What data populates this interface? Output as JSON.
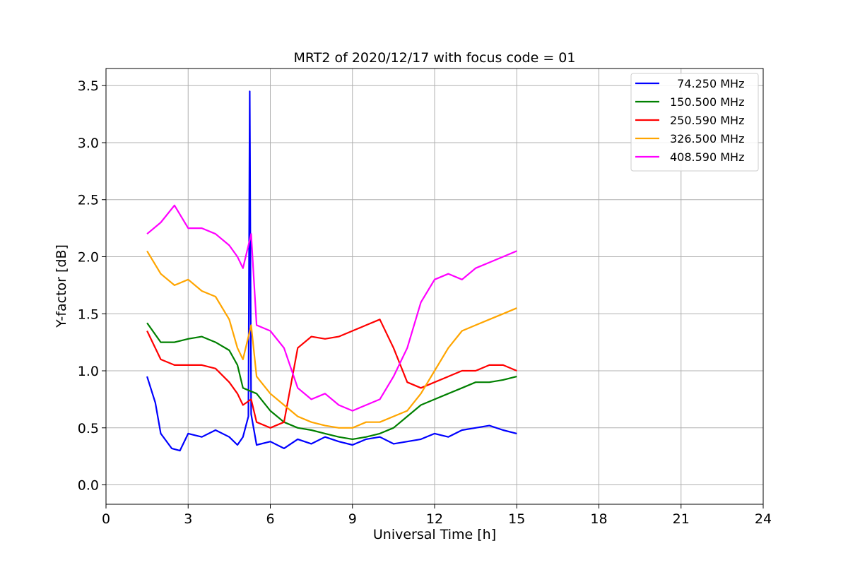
{
  "chart_data": {
    "type": "line",
    "title": "MRT2 of 2020/12/17 with focus code = 01",
    "xlabel": "Universal Time [h]",
    "ylabel": "Y-factor [dB]",
    "xlim": [
      0,
      24
    ],
    "ylim": [
      -0.17,
      3.65
    ],
    "xticks": [
      0,
      3,
      6,
      9,
      12,
      15,
      18,
      21,
      24
    ],
    "xtick_labels": [
      "0",
      "3",
      "6",
      "9",
      "12",
      "15",
      "18",
      "21",
      "24"
    ],
    "yticks": [
      0.0,
      0.5,
      1.0,
      1.5,
      2.0,
      2.5,
      3.0,
      3.5
    ],
    "ytick_labels": [
      "0.0",
      "0.5",
      "1.0",
      "1.5",
      "2.0",
      "2.5",
      "3.0",
      "3.5"
    ],
    "grid": true,
    "legend_position": "top-right",
    "series": [
      {
        "name": "  74.250 MHz",
        "color": "#0000ff",
        "x": [
          1.5,
          1.8,
          2.0,
          2.4,
          2.7,
          3.0,
          3.5,
          4.0,
          4.5,
          4.8,
          5.0,
          5.2,
          5.25,
          5.3,
          5.5,
          6.0,
          6.5,
          7.0,
          7.5,
          8.0,
          8.5,
          9.0,
          9.5,
          10.0,
          10.5,
          11.0,
          11.5,
          12.0,
          12.5,
          13.0,
          13.5,
          14.0,
          14.5,
          15.0
        ],
        "y": [
          0.95,
          0.72,
          0.45,
          0.32,
          0.3,
          0.45,
          0.42,
          0.48,
          0.42,
          0.35,
          0.42,
          0.6,
          3.45,
          0.62,
          0.35,
          0.38,
          0.32,
          0.4,
          0.36,
          0.42,
          0.38,
          0.35,
          0.4,
          0.42,
          0.36,
          0.38,
          0.4,
          0.45,
          0.42,
          0.48,
          0.5,
          0.52,
          0.48,
          0.45
        ]
      },
      {
        "name": "150.500 MHz",
        "color": "#008000",
        "x": [
          1.5,
          2.0,
          2.5,
          3.0,
          3.5,
          4.0,
          4.5,
          4.8,
          5.0,
          5.5,
          6.0,
          6.5,
          7.0,
          7.5,
          8.0,
          8.5,
          9.0,
          9.5,
          10.0,
          10.5,
          11.0,
          11.5,
          12.0,
          12.5,
          13.0,
          13.5,
          14.0,
          14.5,
          15.0
        ],
        "y": [
          1.42,
          1.25,
          1.25,
          1.28,
          1.3,
          1.25,
          1.18,
          1.05,
          0.85,
          0.8,
          0.65,
          0.55,
          0.5,
          0.48,
          0.45,
          0.42,
          0.4,
          0.42,
          0.45,
          0.5,
          0.6,
          0.7,
          0.75,
          0.8,
          0.85,
          0.9,
          0.9,
          0.92,
          0.95
        ]
      },
      {
        "name": "250.590 MHz",
        "color": "#ff0000",
        "x": [
          1.5,
          2.0,
          2.5,
          3.0,
          3.5,
          4.0,
          4.5,
          4.8,
          5.0,
          5.3,
          5.5,
          6.0,
          6.5,
          7.0,
          7.5,
          8.0,
          8.5,
          9.0,
          9.5,
          10.0,
          10.5,
          11.0,
          11.5,
          12.0,
          12.5,
          13.0,
          13.5,
          14.0,
          14.5,
          15.0
        ],
        "y": [
          1.35,
          1.1,
          1.05,
          1.05,
          1.05,
          1.02,
          0.9,
          0.8,
          0.7,
          0.75,
          0.55,
          0.5,
          0.55,
          1.2,
          1.3,
          1.28,
          1.3,
          1.35,
          1.4,
          1.45,
          1.2,
          0.9,
          0.85,
          0.9,
          0.95,
          1.0,
          1.0,
          1.05,
          1.05,
          1.0
        ]
      },
      {
        "name": "326.500 MHz",
        "color": "#ffa500",
        "x": [
          1.5,
          2.0,
          2.5,
          3.0,
          3.5,
          4.0,
          4.5,
          4.8,
          5.0,
          5.3,
          5.5,
          6.0,
          6.5,
          7.0,
          7.5,
          8.0,
          8.5,
          9.0,
          9.5,
          10.0,
          10.5,
          11.0,
          11.5,
          12.0,
          12.5,
          13.0,
          13.5,
          14.0,
          14.5,
          15.0
        ],
        "y": [
          2.05,
          1.85,
          1.75,
          1.8,
          1.7,
          1.65,
          1.45,
          1.2,
          1.1,
          1.4,
          0.95,
          0.8,
          0.7,
          0.6,
          0.55,
          0.52,
          0.5,
          0.5,
          0.55,
          0.55,
          0.6,
          0.65,
          0.8,
          1.0,
          1.2,
          1.35,
          1.4,
          1.45,
          1.5,
          1.55
        ]
      },
      {
        "name": "408.590 MHz",
        "color": "#ff00ff",
        "x": [
          1.5,
          2.0,
          2.5,
          3.0,
          3.5,
          4.0,
          4.5,
          4.8,
          5.0,
          5.3,
          5.5,
          6.0,
          6.5,
          7.0,
          7.5,
          8.0,
          8.5,
          9.0,
          9.5,
          10.0,
          10.5,
          11.0,
          11.5,
          12.0,
          12.5,
          13.0,
          13.5,
          14.0,
          14.5,
          15.0
        ],
        "y": [
          2.2,
          2.3,
          2.45,
          2.25,
          2.25,
          2.2,
          2.1,
          2.0,
          1.9,
          2.2,
          1.4,
          1.35,
          1.2,
          0.85,
          0.75,
          0.8,
          0.7,
          0.65,
          0.7,
          0.75,
          0.95,
          1.2,
          1.6,
          1.8,
          1.85,
          1.8,
          1.9,
          1.95,
          2.0,
          2.05
        ]
      }
    ]
  }
}
